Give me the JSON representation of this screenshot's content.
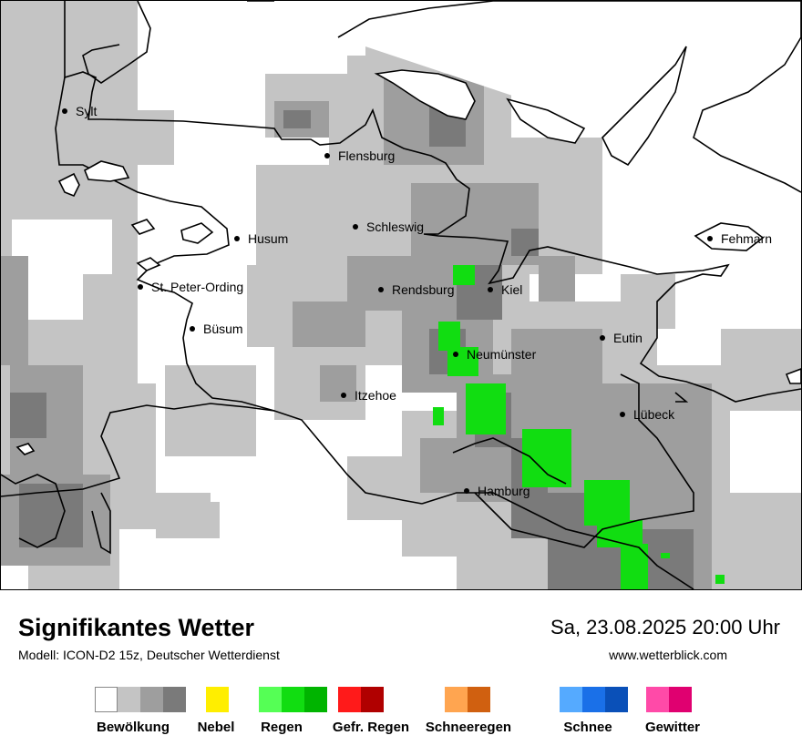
{
  "map": {
    "cities": [
      {
        "name": "Sylt"
      },
      {
        "name": "Flensburg"
      },
      {
        "name": "Schleswig"
      },
      {
        "name": "Husum"
      },
      {
        "name": "Fehmarn"
      },
      {
        "name": "St. Peter-Ording"
      },
      {
        "name": "Rendsburg"
      },
      {
        "name": "Kiel"
      },
      {
        "name": "Büsum"
      },
      {
        "name": "Eutin"
      },
      {
        "name": "Neumünster"
      },
      {
        "name": "Itzehoe"
      },
      {
        "name": "Lübeck"
      },
      {
        "name": "Hamburg"
      }
    ]
  },
  "footer": {
    "title": "Signifikantes Wetter",
    "model": "Modell: ICON-D2 15z, Deutscher Wetterdienst",
    "datetime": "Sa, 23.08.2025 20:00 Uhr",
    "website": "www.wetterblick.com"
  },
  "legend": [
    {
      "label": "Bewölkung",
      "colors": [
        "#ffffff",
        "#c4c4c4",
        "#9e9e9e",
        "#7a7a7a"
      ]
    },
    {
      "label": "Nebel",
      "colors": [
        "#ffee00"
      ]
    },
    {
      "label": "Regen",
      "colors": [
        "#55ff55",
        "#11dd11",
        "#00b400"
      ]
    },
    {
      "label": "Gefr. Regen",
      "colors": [
        "#ff1a1a",
        "#b00000"
      ]
    },
    {
      "label": "Schneeregen",
      "colors": [
        "#ffa550",
        "#d06010"
      ]
    },
    {
      "label": "Schnee",
      "colors": [
        "#55aaff",
        "#1a70e8",
        "#0a50b8"
      ]
    },
    {
      "label": "Gewitter",
      "colors": [
        "#ff4aa8",
        "#e00070"
      ]
    }
  ]
}
